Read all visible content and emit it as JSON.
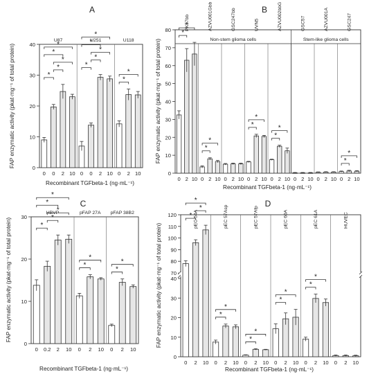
{
  "colors": {
    "bar_control": "#ffffff",
    "bar_treated": "#e6e6e6",
    "edge": "#333333",
    "text": "#222222"
  },
  "chart_data": [
    {
      "panel": "A",
      "type": "bar",
      "ylabel": "FAP enzymatic activity (pkat·mg⁻¹ of total protein)",
      "xlabel": "Recombinant TGFbeta-1 (ng·mL⁻¹)",
      "ylim": [
        0,
        40
      ],
      "yticks": [
        0,
        10,
        20,
        30,
        40
      ],
      "groups": [
        {
          "name": "U87",
          "doses": [
            "0",
            "0",
            "2",
            "10"
          ],
          "values": [
            9,
            19.7,
            24.7,
            23
          ],
          "errors": [
            0.8,
            0.8,
            2.3,
            0.8
          ],
          "brackets": [
            [
              0,
              1
            ],
            [
              1,
              2
            ],
            [
              1,
              3
            ],
            [
              0,
              2
            ],
            [
              0,
              3
            ]
          ]
        },
        {
          "name": "U251",
          "doses": [
            "0",
            "0",
            "2",
            "10"
          ],
          "values": [
            7,
            13.8,
            29.3,
            28.8
          ],
          "errors": [
            1.5,
            0.7,
            0.9,
            0.9
          ],
          "brackets": [
            [
              0,
              1
            ],
            [
              1,
              2
            ],
            [
              1,
              3
            ],
            [
              0,
              2
            ],
            [
              0,
              3
            ]
          ]
        },
        {
          "name": "U118",
          "doses": [
            "0",
            "2",
            "10"
          ],
          "values": [
            14.2,
            23.7,
            23.6
          ],
          "errors": [
            1,
            1.8,
            1.1
          ],
          "brackets": [
            [
              0,
              1
            ],
            [
              0,
              2
            ]
          ]
        }
      ]
    },
    {
      "panel": "B",
      "type": "bar",
      "ylabel": "FAP enzymatic activity (pkat·mg⁻¹ of total protein)",
      "xlabel": "Recombinant TGFbeta-1 (ng·mL⁻¹)",
      "ylim": [
        0,
        80
      ],
      "yticks": [
        0,
        10,
        20,
        30,
        40,
        50,
        60,
        70,
        80
      ],
      "cell_groups": [
        "Non-stem glioma cells",
        "Stem-like glioma cells"
      ],
      "groups": [
        {
          "name": "PK57bb",
          "doses": [
            "0",
            "2",
            "10"
          ],
          "values": [
            32.5,
            63,
            66.5
          ],
          "errors": [
            2.3,
            6.5,
            6.5
          ],
          "brackets": [
            [
              0,
              1
            ],
            [
              0,
              2
            ]
          ]
        },
        {
          "name": "AZVU001Gbb",
          "doses": [
            "0",
            "2",
            "10"
          ],
          "values": [
            3.5,
            8,
            6.5
          ],
          "errors": [
            0.6,
            0.6,
            0.6
          ],
          "brackets": [
            [
              0,
              1
            ],
            [
              0,
              2
            ]
          ]
        },
        {
          "name": "GSC247bb",
          "doses": [
            "0",
            "2",
            "10"
          ],
          "values": [
            5,
            5.2,
            5.2
          ],
          "errors": [
            0.4,
            0.4,
            0.4
          ],
          "brackets": []
        },
        {
          "name": "UVN5",
          "doses": [
            "0",
            "2",
            "10"
          ],
          "values": [
            6.3,
            20.8,
            20.5
          ],
          "errors": [
            0.3,
            0.9,
            0.6
          ],
          "brackets": [
            [
              0,
              1
            ],
            [
              0,
              2
            ]
          ]
        },
        {
          "name": "AZVU002bbG",
          "doses": [
            "0",
            "2",
            "10"
          ],
          "values": [
            7.5,
            15,
            12.5
          ],
          "errors": [
            0.3,
            0.6,
            1.5
          ],
          "brackets": [
            [
              0,
              1
            ],
            [
              0,
              2
            ]
          ]
        },
        {
          "name": "GSC57",
          "doses": [
            "0",
            "2",
            "10"
          ],
          "values": [
            0.2,
            0.2,
            0.2
          ],
          "errors": [
            0.2,
            0.2,
            0.2
          ],
          "brackets": []
        },
        {
          "name": "AZVU001A",
          "doses": [
            "0",
            "2",
            "10"
          ],
          "values": [
            0.5,
            0.6,
            0.6
          ],
          "errors": [
            0.2,
            0.2,
            0.2
          ],
          "brackets": []
        },
        {
          "name": "GSC247",
          "doses": [
            "0",
            "2",
            "10"
          ],
          "values": [
            0.9,
            1.2,
            1.1
          ],
          "errors": [
            0.3,
            0.4,
            0.3
          ],
          "brackets": [
            [
              0,
              1
            ],
            [
              0,
              2
            ]
          ]
        }
      ]
    },
    {
      "panel": "C",
      "type": "bar",
      "ylabel": "FAP enzymatic activity (pkat·mg⁻¹ of total protein)",
      "xlabel": "Recombinant TGFbeta-1 (ng·mL⁻¹)",
      "ylim": [
        0,
        30
      ],
      "yticks": [
        0,
        10,
        20,
        30
      ],
      "groups": [
        {
          "name": "HBVP",
          "doses": [
            "0",
            "0.2",
            "2",
            "10"
          ],
          "values": [
            13.8,
            18.3,
            24.5,
            24.7
          ],
          "errors": [
            1.3,
            1.2,
            1.2,
            1
          ],
          "brackets": [
            [
              0,
              1
            ],
            [
              1,
              2
            ],
            [
              1,
              3
            ],
            [
              0,
              2
            ],
            [
              0,
              3
            ]
          ]
        },
        {
          "name": "pFAP 27A",
          "doses": [
            "0",
            "2",
            "10"
          ],
          "values": [
            11.3,
            15.8,
            15.3
          ],
          "errors": [
            0.6,
            0.5,
            0.3
          ],
          "brackets": [
            [
              0,
              1
            ],
            [
              0,
              2
            ]
          ]
        },
        {
          "name": "pFAP 38B2",
          "doses": [
            "0",
            "2",
            "10"
          ],
          "values": [
            4.3,
            14.5,
            13.5
          ],
          "errors": [
            0.3,
            0.8,
            0.4
          ],
          "brackets": [
            [
              0,
              1
            ],
            [
              0,
              2
            ]
          ]
        }
      ]
    },
    {
      "panel": "D",
      "type": "bar",
      "ylabel": "FAP enzymatic activity (pkat·mg⁻¹ of total protein)",
      "xlabel": "Recombinant TGFbeta-1 (ng·mL⁻¹)",
      "y_break": {
        "lower": [
          0,
          40
        ],
        "upper": [
          70,
          120
        ]
      },
      "yticks_lower": [
        0,
        10,
        20,
        30,
        40
      ],
      "yticks_upper": [
        70,
        80,
        90,
        100,
        110,
        120
      ],
      "groups": [
        {
          "name": "pEC 54A",
          "doses": [
            "0",
            "2",
            "10"
          ],
          "values": [
            78,
            96,
            107
          ],
          "errors": [
            2.5,
            2.5,
            4
          ],
          "brackets": [
            [
              0,
              1
            ],
            [
              1,
              2
            ],
            [
              0,
              2
            ]
          ]
        },
        {
          "name": "pEC 57Asp",
          "doses": [
            "0",
            "2",
            "10"
          ],
          "values": [
            7.5,
            15.7,
            15.3
          ],
          "errors": [
            1,
            1,
            1
          ],
          "brackets": [
            [
              0,
              1
            ],
            [
              0,
              2
            ]
          ]
        },
        {
          "name": "pEC 57Afp",
          "doses": [
            "0",
            "2",
            "10"
          ],
          "values": [
            0.8,
            3.8,
            3.6
          ],
          "errors": [
            0.2,
            0.3,
            0.2
          ],
          "brackets": [
            [
              0,
              1
            ],
            [
              0,
              2
            ]
          ]
        },
        {
          "name": "pEC 60A",
          "doses": [
            "0",
            "2",
            "10"
          ],
          "values": [
            14.3,
            19.4,
            20.2
          ],
          "errors": [
            2.5,
            3,
            4
          ],
          "brackets": [
            [
              0,
              1
            ],
            [
              0,
              2
            ]
          ]
        },
        {
          "name": "pEC 61A",
          "doses": [
            "0",
            "2",
            "10"
          ],
          "values": [
            9,
            29.8,
            27.7
          ],
          "errors": [
            1,
            2.2,
            1.8
          ],
          "brackets": [
            [
              0,
              1
            ],
            [
              0,
              2
            ]
          ]
        },
        {
          "name": "HUVEC",
          "doses": [
            "0",
            "2",
            "10"
          ],
          "values": [
            0.6,
            0.6,
            0.5
          ],
          "errors": [
            0.3,
            0.3,
            0.3
          ],
          "brackets": []
        }
      ]
    }
  ]
}
